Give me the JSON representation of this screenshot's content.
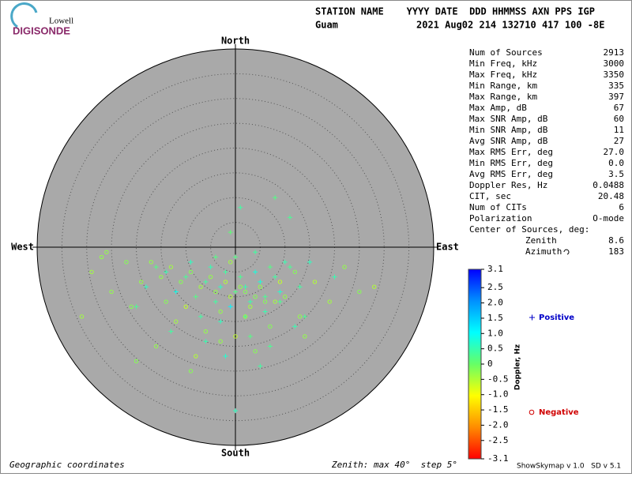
{
  "header": {
    "logo_top": "Lowell",
    "logo_bottom": "DIGISONDE",
    "columns": "STATION NAME    YYYY DATE  DDD HHMMSS AXN PPS IGP",
    "station": "Guam",
    "values": "2021 Aug02 214 132710 417 100 -8E"
  },
  "stats": [
    {
      "label": "Num of Sources",
      "value": "2913"
    },
    {
      "label": "Min Freq, kHz",
      "value": "3000"
    },
    {
      "label": "Max Freq, kHz",
      "value": "3350"
    },
    {
      "label": "Min Range, km",
      "value": "335"
    },
    {
      "label": "Max Range, km",
      "value": "397"
    },
    {
      "label": "Max Amp, dB",
      "value": "67"
    },
    {
      "label": "Max SNR Amp, dB",
      "value": "60"
    },
    {
      "label": "Min SNR Amp, dB",
      "value": "11"
    },
    {
      "label": "Avg SNR Amp, dB",
      "value": "27"
    },
    {
      "label": "Max RMS Err, deg",
      "value": "27.0"
    },
    {
      "label": "Min RMS Err, deg",
      "value": "0.0"
    },
    {
      "label": "Avg RMS Err, deg",
      "value": "3.5"
    },
    {
      "label": "Doppler Res, Hz",
      "value": "0.0488"
    },
    {
      "label": "CIT, sec",
      "value": "20.48"
    },
    {
      "label": "Num of CITs",
      "value": "6"
    },
    {
      "label": "Polarization",
      "value": "O-mode"
    }
  ],
  "center": {
    "label": "Center of Sources, deg:",
    "zenith_label": "Zenith",
    "zenith": "8.6",
    "azimuth_label": "Azimuth",
    "azimuth": "183"
  },
  "footer": {
    "left": "Geographic coordinates",
    "zenith_label": "Zenith:",
    "max_label": "max",
    "step_label": "step",
    "unit": "°",
    "software": "ShowSkymap v 1.0   SD v 5.1"
  },
  "chart_data": {
    "type": "skymap",
    "directions": {
      "north": "North",
      "south": "South",
      "west": "West",
      "east": "East"
    },
    "zenith_max": 40,
    "zenith_step": 5,
    "colorbar_label": "Doppler, Hz",
    "clim": [
      -3.1,
      3.1
    ],
    "colorscale": [
      "#ff0000",
      "#ff8c00",
      "#ffff00",
      "#66ff66",
      "#00ffff",
      "#0090ff",
      "#0000ff"
    ],
    "cticks": [
      3.1,
      2.5,
      {
        "value": 2,
        "label": "2.0"
      },
      1.5,
      {
        "value": 1,
        "label": "1.0"
      },
      0.5,
      0,
      -0.5,
      {
        "value": -1,
        "label": "-1.0"
      },
      -1.5,
      {
        "value": -2,
        "label": "-2.0"
      },
      -2.5,
      -3.1
    ],
    "series": [
      {
        "name": "Positive",
        "color": "#0000c8",
        "marker": "+",
        "x": [
          -14,
          -10,
          -6,
          -3,
          0,
          2,
          5,
          8,
          11,
          15,
          -12,
          -8,
          -4,
          -1,
          3,
          6,
          9,
          13,
          -16,
          -9,
          -5,
          -2,
          1,
          4,
          7,
          10,
          -7,
          -3,
          2,
          6,
          0,
          -1,
          1,
          11,
          8,
          -18,
          20,
          7,
          -13,
          3,
          12,
          -20,
          -2,
          5,
          9,
          -6,
          4,
          0,
          14,
          -4
        ],
        "y": [
          -5,
          -6,
          -7,
          -8,
          -9,
          -8,
          -7,
          -6,
          -4,
          -3,
          -9,
          -10,
          -11,
          -12,
          -11,
          -10,
          -9,
          -8,
          -4,
          -3,
          -4,
          -5,
          -6,
          -5,
          -4,
          -3,
          -14,
          -15,
          -14,
          -13,
          -2,
          3,
          8,
          6,
          10,
          -8,
          -6,
          -20,
          -17,
          -18,
          -16,
          -12,
          -22,
          -24,
          -11,
          -19,
          -1,
          -33,
          -14,
          -2
        ],
        "doppler": [
          0.5,
          0.3,
          0.4,
          0.6,
          0.2,
          0.5,
          0.8,
          0.4,
          0.3,
          0.6,
          0.9,
          0.2,
          0.4,
          1.1,
          0.5,
          0.3,
          0.7,
          0.4,
          0.2,
          0.6,
          0.5,
          0.4,
          0.3,
          0.8,
          0.2,
          0.5,
          0.4,
          0.6,
          0.3,
          0.5,
          0.2,
          0.1,
          0.4,
          0.3,
          0.2,
          0.6,
          0.5,
          0.3,
          0.4,
          0.2,
          0.5,
          0.3,
          0.7,
          0.4,
          0.3,
          0.5,
          0.4,
          0.6,
          0.3,
          0.2
        ]
      },
      {
        "name": "Negative",
        "color": "#d00000",
        "marker": "o",
        "x": [
          -15,
          -11,
          -7,
          -4,
          -1,
          2,
          5,
          9,
          12,
          -17,
          -13,
          -9,
          -5,
          -2,
          1,
          4,
          8,
          -19,
          -14,
          -10,
          -3,
          3,
          6,
          10,
          16,
          -22,
          -26,
          -29,
          -25,
          -21,
          -12,
          -6,
          0,
          7,
          13,
          19,
          25,
          -16,
          -8,
          -3,
          4,
          -31,
          -27,
          -9,
          22,
          28,
          -1,
          2,
          -20,
          14
        ],
        "y": [
          -6,
          -7,
          -8,
          -9,
          -10,
          -9,
          -8,
          -7,
          -5,
          -3,
          -4,
          -5,
          -6,
          -7,
          -8,
          -10,
          -11,
          -7,
          -11,
          -12,
          -13,
          -12,
          -11,
          -10,
          -7,
          -3,
          -1,
          -5,
          -9,
          -12,
          -15,
          -17,
          -18,
          -16,
          -14,
          -11,
          -9,
          -20,
          -22,
          -19,
          -21,
          -14,
          -2,
          -25,
          -4,
          -8,
          -3,
          -14,
          -23,
          -18
        ],
        "doppler": [
          -0.3,
          -0.2,
          -0.4,
          -0.3,
          -0.5,
          -0.2,
          -0.3,
          -0.6,
          -0.2,
          -0.3,
          -0.4,
          -0.2,
          -0.3,
          -0.5,
          -0.3,
          -0.2,
          -0.4,
          -0.3,
          -0.2,
          -0.6,
          -0.3,
          -0.4,
          -0.2,
          -0.3,
          -0.5,
          -0.2,
          -0.3,
          -0.4,
          -0.3,
          -0.2,
          -0.4,
          -0.3,
          -0.6,
          -0.2,
          -0.3,
          -0.4,
          -0.2,
          -0.3,
          -0.5,
          -0.3,
          -0.2,
          -0.4,
          -0.3,
          -0.2,
          -0.3,
          -0.5,
          -0.4,
          -0.3,
          -0.2,
          -0.3
        ]
      }
    ]
  }
}
